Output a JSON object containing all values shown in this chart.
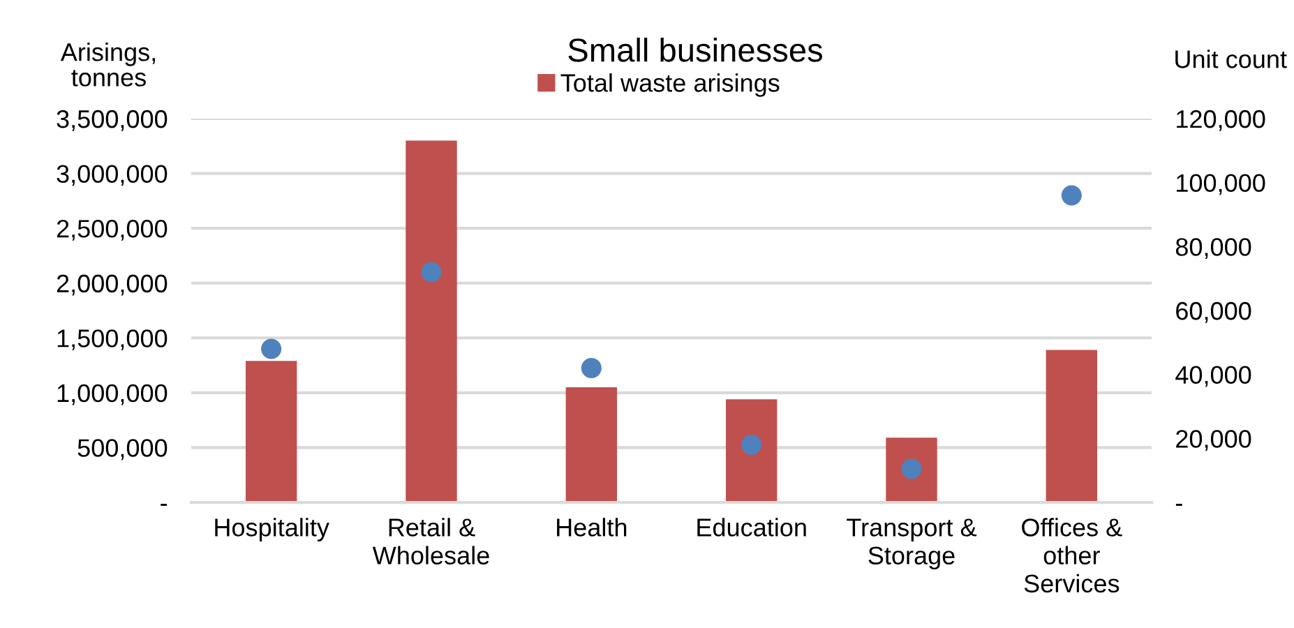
{
  "chart_data": {
    "type": "bar",
    "title": "Small businesses",
    "ylabel": "Arisings,\ntonnes",
    "y2label": "Unit count",
    "categories": [
      "Hospitality",
      "Retail &\nWholesale",
      "Health",
      "Education",
      "Transport &\nStorage",
      "Offices &\nother\nServices"
    ],
    "series": [
      {
        "name": "Total waste arisings",
        "color": "#c0504d",
        "values": [
          1290000,
          3300000,
          1050000,
          940000,
          590000,
          1390000
        ]
      },
      {
        "color": "#4f81bd",
        "type": "scatter",
        "axis": "y2",
        "marker": "circle",
        "values": [
          48000,
          72000,
          42000,
          18000,
          10500,
          96000
        ]
      }
    ],
    "ylim": [
      0,
      3500000
    ],
    "yticks": [
      {
        "value": 0,
        "label": "-"
      },
      {
        "value": 500000,
        "label": "500,000"
      },
      {
        "value": 1000000,
        "label": "1,000,000"
      },
      {
        "value": 1500000,
        "label": "1,500,000"
      },
      {
        "value": 2000000,
        "label": "2,000,000"
      },
      {
        "value": 2500000,
        "label": "2,500,000"
      },
      {
        "value": 3000000,
        "label": "3,000,000"
      },
      {
        "value": 3500000,
        "label": "3,500,000"
      }
    ],
    "y2lim": [
      0,
      120000
    ],
    "y2ticks": [
      {
        "value": 0,
        "label": "-"
      },
      {
        "value": 20000,
        "label": "20,000"
      },
      {
        "value": 40000,
        "label": "40,000"
      },
      {
        "value": 60000,
        "label": "60,000"
      },
      {
        "value": 80000,
        "label": "80,000"
      },
      {
        "value": 100000,
        "label": "100,000"
      },
      {
        "value": 120000,
        "label": "120,000"
      }
    ],
    "grid": "y",
    "legend": "top"
  }
}
